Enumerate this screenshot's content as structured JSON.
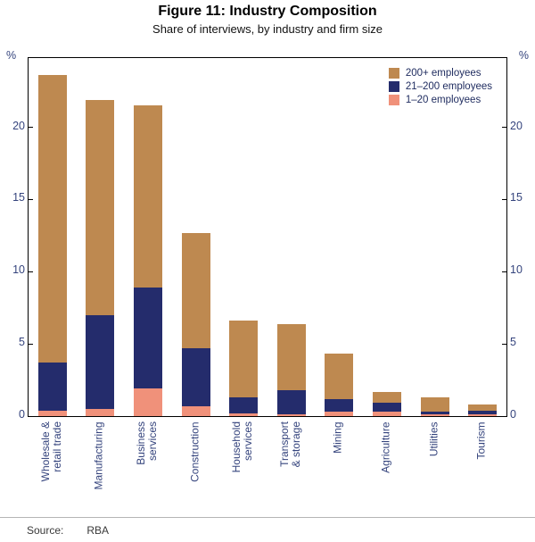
{
  "figure": {
    "title": "Figure 11: Industry Composition",
    "subtitle": "Share of interviews, by industry and firm size",
    "y_unit_left": "%",
    "y_unit_right": "%",
    "source_label": "Source:",
    "source_value": "RBA"
  },
  "chart_data": {
    "type": "bar",
    "stacked": true,
    "title": "Figure 11: Industry Composition",
    "subtitle": "Share of interviews, by industry and firm size",
    "categories": [
      "Wholesale &\nretail trade",
      "Manufacturing",
      "Business\nservices",
      "Construction",
      "Household\nservices",
      "Transport\n& storage",
      "Mining",
      "Agriculture",
      "Utilities",
      "Tourism"
    ],
    "series": [
      {
        "name": "1–20 employees",
        "color": "#f0917a",
        "values": [
          0.4,
          0.5,
          1.9,
          0.7,
          0.2,
          0.15,
          0.3,
          0.3,
          0.1,
          0.1
        ]
      },
      {
        "name": "21–200 employees",
        "color": "#242c6c",
        "values": [
          3.3,
          6.5,
          7.0,
          4.0,
          1.1,
          1.65,
          0.9,
          0.6,
          0.2,
          0.3
        ]
      },
      {
        "name": "200+ employees",
        "color": "#be8950",
        "values": [
          19.9,
          14.9,
          12.6,
          8.0,
          5.3,
          4.6,
          3.1,
          0.8,
          1.0,
          0.4
        ]
      }
    ],
    "legend": [
      "200+ employees",
      "21–200 employees",
      "1–20 employees"
    ],
    "legend_position": "top-right",
    "xlabel": "",
    "ylabel_left": "%",
    "ylabel_right": "%",
    "ylim": [
      0,
      24.8
    ],
    "yticks": [
      0,
      5,
      10,
      15,
      20
    ],
    "grid": false
  }
}
